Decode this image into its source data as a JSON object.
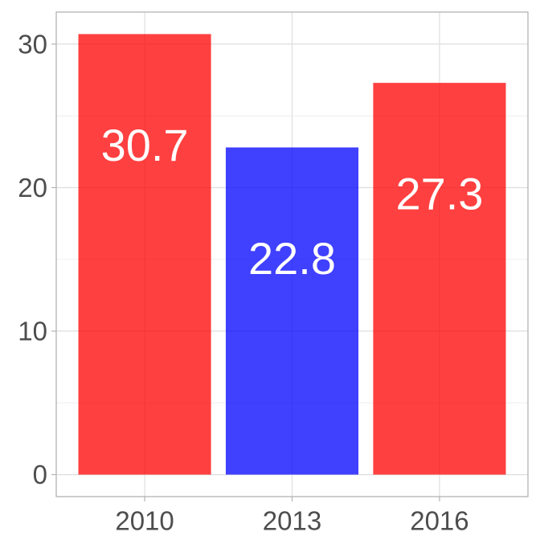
{
  "chart_data": {
    "type": "bar",
    "categories": [
      "2010",
      "2013",
      "2016"
    ],
    "values": [
      30.7,
      22.8,
      27.3
    ],
    "value_labels": [
      "30.7",
      "22.8",
      "27.3"
    ],
    "bar_colors": [
      "#ff0000",
      "#0000ff",
      "#ff0000"
    ],
    "bar_opacity": 0.75,
    "title": "",
    "xlabel": "",
    "ylabel": "",
    "ylim": [
      -1.535,
      32.235
    ],
    "yticks": [
      0,
      10,
      20,
      30
    ],
    "ytick_labels": [
      "0",
      "10",
      "20",
      "30"
    ],
    "grid": true,
    "legend": "none"
  }
}
